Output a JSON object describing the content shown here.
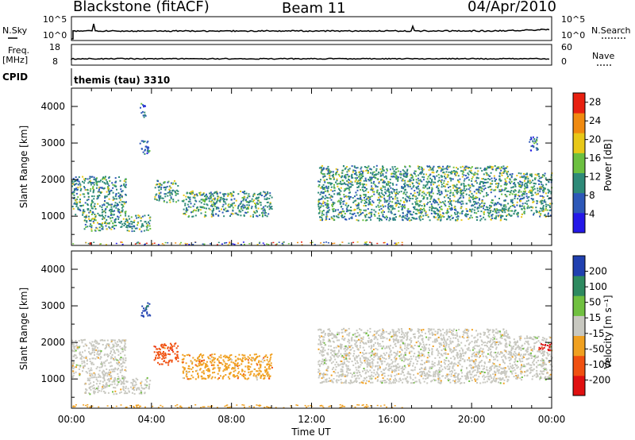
{
  "header": {
    "radar": "Blackstone (fitACF)",
    "beam": "Beam 11",
    "date": "04/Apr/2010"
  },
  "summary": {
    "nsky_label": "N.Sky",
    "nsky_ticks": [
      "10^5",
      "10^0"
    ],
    "nsearch_label": "N.Search",
    "nsearch_ticks": [
      "10^5",
      "10^0"
    ],
    "freq_label_1": "Freq.",
    "freq_label_2": "[MHz]",
    "freq_ticks": [
      "18",
      "8"
    ],
    "nave_label": "Nave",
    "nave_ticks": [
      "60",
      "0"
    ],
    "cpid_label": "CPID",
    "cpid_value": "themis (tau) 3310"
  },
  "chart_data": [
    {
      "type": "heatmap",
      "name": "power",
      "xlabel": "",
      "ylabel": "Slant Range [km]",
      "xlim": [
        0,
        24
      ],
      "ylim": [
        200,
        4500
      ],
      "yticks": [
        "1000",
        "2000",
        "3000",
        "4000"
      ],
      "colorbar_label": "Power [dB]",
      "colorbar_ticks": [
        "28",
        "24",
        "20",
        "16",
        "12",
        "8",
        "4"
      ],
      "colorbar_range": [
        0,
        30
      ],
      "colors": [
        "#2418e8",
        "#2d58b8",
        "#2e8a78",
        "#6cc040",
        "#e8c818",
        "#f08a10",
        "#e82010"
      ],
      "regions": [
        {
          "t0": 0.0,
          "t1": 2.7,
          "r0": 1050,
          "r1": 2100,
          "level": 2
        },
        {
          "t0": 0.6,
          "t1": 3.9,
          "r0": 600,
          "r1": 1050,
          "level": 2
        },
        {
          "t0": 3.4,
          "t1": 3.9,
          "r0": 2700,
          "r1": 3100,
          "level": 1
        },
        {
          "t0": 3.4,
          "t1": 3.7,
          "r0": 3700,
          "r1": 4100,
          "level": 1
        },
        {
          "t0": 4.1,
          "t1": 5.3,
          "r0": 1400,
          "r1": 2000,
          "level": 2
        },
        {
          "t0": 5.5,
          "t1": 10.0,
          "r0": 1000,
          "r1": 1700,
          "level": 2
        },
        {
          "t0": 12.3,
          "t1": 21.8,
          "r0": 900,
          "r1": 2400,
          "level": 2
        },
        {
          "t0": 21.8,
          "t1": 24.0,
          "r0": 1000,
          "r1": 2200,
          "level": 2
        },
        {
          "t0": 22.8,
          "t1": 23.3,
          "r0": 2800,
          "r1": 3200,
          "level": 1
        }
      ]
    },
    {
      "type": "heatmap",
      "name": "velocity",
      "xlabel": "Time UT",
      "ylabel": "Slant Range [km]",
      "xlim": [
        0,
        24
      ],
      "ylim": [
        200,
        4500
      ],
      "xticks": [
        "00:00",
        "04:00",
        "08:00",
        "12:00",
        "16:00",
        "20:00",
        "00:00"
      ],
      "yticks": [
        "1000",
        "2000",
        "3000",
        "4000"
      ],
      "colorbar_label": "Velocity [m s⁻¹]",
      "colorbar_ticks": [
        "200",
        "100",
        "50",
        "15",
        "-15",
        "-50",
        "-100",
        "-200"
      ],
      "colorbar_range": [
        -250,
        250
      ],
      "colors": [
        "#e01010",
        "#f05010",
        "#f0a020",
        "#c8c8c0",
        "#70c040",
        "#2e8a60",
        "#2040b0"
      ],
      "regions": [
        {
          "t0": 0.0,
          "t1": 2.7,
          "r0": 1050,
          "r1": 2100,
          "level": 3
        },
        {
          "t0": 0.6,
          "t1": 3.9,
          "r0": 600,
          "r1": 1050,
          "level": 3
        },
        {
          "t0": 3.4,
          "t1": 3.9,
          "r0": 2700,
          "r1": 3100,
          "level": 6
        },
        {
          "t0": 4.1,
          "t1": 5.3,
          "r0": 1400,
          "r1": 2000,
          "level": 1
        },
        {
          "t0": 5.5,
          "t1": 10.0,
          "r0": 1000,
          "r1": 1700,
          "level": 2
        },
        {
          "t0": 12.3,
          "t1": 21.8,
          "r0": 900,
          "r1": 2400,
          "level": 3
        },
        {
          "t0": 21.8,
          "t1": 24.0,
          "r0": 1000,
          "r1": 2200,
          "level": 3
        },
        {
          "t0": 23.3,
          "t1": 24.0,
          "r0": 1800,
          "r1": 2000,
          "level": 0
        }
      ]
    }
  ]
}
